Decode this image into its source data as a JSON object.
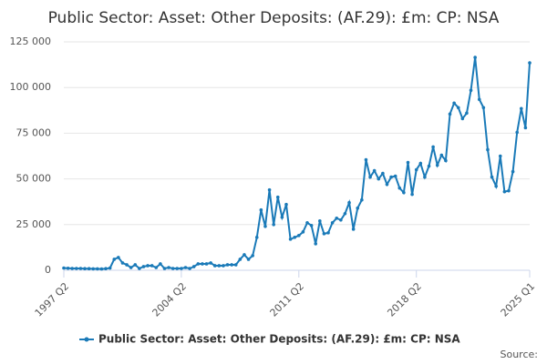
{
  "chart_data": {
    "type": "line",
    "title": "Public Sector: Asset: Other Deposits: (AF.29): £m: CP: NSA",
    "source_label": "Source:",
    "categories": [
      "1997 Q2",
      null,
      null,
      null,
      null,
      null,
      null,
      null,
      null,
      null,
      null,
      null,
      null,
      null,
      null,
      null,
      null,
      null,
      null,
      null,
      null,
      null,
      null,
      null,
      null,
      null,
      null,
      null,
      "2004 Q2",
      null,
      null,
      null,
      null,
      null,
      null,
      null,
      null,
      null,
      null,
      null,
      null,
      null,
      null,
      null,
      null,
      null,
      null,
      null,
      null,
      null,
      null,
      null,
      null,
      null,
      null,
      null,
      "2011 Q2",
      null,
      null,
      null,
      null,
      null,
      null,
      null,
      null,
      null,
      null,
      null,
      null,
      null,
      null,
      null,
      null,
      null,
      null,
      null,
      null,
      null,
      null,
      null,
      null,
      null,
      null,
      null,
      "2018 Q2",
      null,
      null,
      null,
      null,
      null,
      null,
      null,
      null,
      null,
      null,
      null,
      null,
      null,
      null,
      null,
      null,
      null,
      null,
      null,
      null,
      null,
      null,
      null,
      null,
      null,
      null,
      "2025 Q1"
    ],
    "series": [
      {
        "name": "Public Sector: Asset: Other Deposits: (AF.29): £m: CP: NSA",
        "color": "#1a7ab8",
        "values": [
          1200,
          1100,
          1000,
          1000,
          1000,
          900,
          900,
          800,
          800,
          700,
          900,
          1200,
          6000,
          7000,
          4000,
          3000,
          1500,
          3000,
          1000,
          2000,
          2500,
          2500,
          1500,
          3500,
          1000,
          1500,
          1000,
          1000,
          1000,
          1500,
          1000,
          2000,
          3500,
          3500,
          3500,
          4000,
          2500,
          2500,
          2500,
          3000,
          3000,
          3000,
          6000,
          8500,
          6000,
          8000,
          18000,
          33000,
          24000,
          44000,
          25000,
          40000,
          29000,
          36000,
          17000,
          18000,
          19000,
          21000,
          26000,
          24500,
          14500,
          27000,
          20000,
          20500,
          26000,
          28500,
          27500,
          31000,
          37000,
          22500,
          34000,
          38500,
          60500,
          51000,
          54500,
          50000,
          53000,
          47000,
          51000,
          51500,
          45000,
          42500,
          59000,
          41500,
          55000,
          58500,
          51000,
          57000,
          67500,
          57500,
          63000,
          60000,
          85500,
          91500,
          89000,
          83000,
          86000,
          98500,
          116500,
          93500,
          89000,
          66000,
          51000,
          46000,
          62500,
          43000,
          43500,
          54000,
          75500,
          88500,
          78000,
          113500
        ]
      }
    ],
    "ylim": [
      0,
      125000
    ],
    "yticks": [
      0,
      {
        "value": 25000,
        "label": "25 000"
      },
      {
        "value": 50000,
        "label": "50 000"
      },
      {
        "value": 75000,
        "label": "75 000"
      },
      {
        "value": 100000,
        "label": "100 000"
      },
      {
        "value": 125000,
        "label": "125 000"
      }
    ],
    "grid": true
  }
}
